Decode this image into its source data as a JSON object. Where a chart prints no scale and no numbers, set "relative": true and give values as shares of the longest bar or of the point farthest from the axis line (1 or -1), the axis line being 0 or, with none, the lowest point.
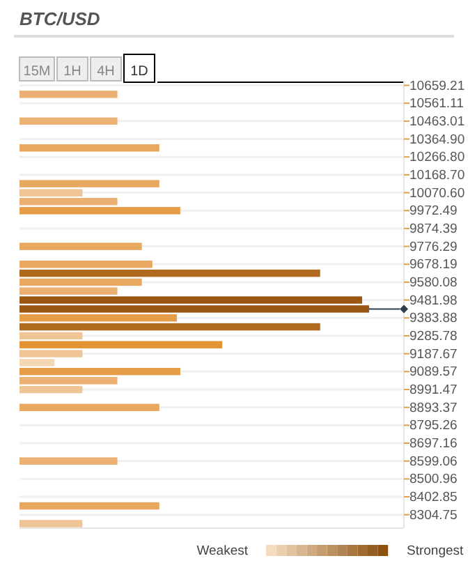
{
  "chart_data": {
    "type": "bar",
    "orientation": "horizontal",
    "relative": true,
    "title": "BTC/USD",
    "annotations": [
      "15M",
      "1H",
      "4H",
      "1D",
      "Weakest",
      "Strongest"
    ],
    "x": [
      10610,
      10463,
      10316,
      10120,
      10070,
      10022,
      9972,
      9776,
      9678,
      9629,
      9580,
      9531,
      9482,
      9433,
      9384,
      9335,
      9286,
      9237,
      9188,
      9139,
      9090,
      9040,
      8991,
      8893,
      8599,
      8353,
      8256
    ],
    "values": [
      0.28,
      0.28,
      0.4,
      0.4,
      0.18,
      0.28,
      0.46,
      0.35,
      0.38,
      0.86,
      0.35,
      0.28,
      0.98,
      1,
      0.45,
      0.86,
      0.18,
      0.58,
      0.18,
      0.1,
      0.46,
      0.28,
      0.18,
      0.4,
      0.28,
      0.4,
      0.18
    ],
    "colors": [
      "#ebb073",
      "#ebb073",
      "#e8a860",
      "#e8a860",
      "#f0c596",
      "#ebb073",
      "#e59d48",
      "#e8a860",
      "#e8a860",
      "#b06a1f",
      "#e8a860",
      "#ebb073",
      "#9a5714",
      "#9a5714",
      "#e59d48",
      "#b06a1f",
      "#f0c596",
      "#e39434",
      "#f0c596",
      "#f5d6b4",
      "#e59d48",
      "#ebb073",
      "#f0c596",
      "#e8a860",
      "#ebb073",
      "#e8a860",
      "#f0c596"
    ],
    "ylim": [
      8231,
      10684
    ],
    "yticks": [
      {
        "value": 10659.21,
        "label": "10659.21"
      },
      {
        "value": 10561.11,
        "label": "10561.11"
      },
      {
        "value": 10463.01,
        "label": "10463.01"
      },
      {
        "value": 10364.9,
        "label": "10364.90"
      },
      {
        "value": 10266.8,
        "label": "10266.80"
      },
      {
        "value": 10168.7,
        "label": "10168.70"
      },
      {
        "value": 10070.6,
        "label": "10070.60"
      },
      {
        "value": 9972.49,
        "label": "9972.49"
      },
      {
        "value": 9874.39,
        "label": "9874.39"
      },
      {
        "value": 9776.29,
        "label": "9776.29"
      },
      {
        "value": 9678.19,
        "label": "9678.19"
      },
      {
        "value": 9580.08,
        "label": "9580.08"
      },
      {
        "value": 9481.98,
        "label": "9481.98"
      },
      {
        "value": 9383.88,
        "label": "9383.88"
      },
      {
        "value": 9285.78,
        "label": "9285.78"
      },
      {
        "value": 9187.67,
        "label": "9187.67"
      },
      {
        "value": 9089.57,
        "label": "9089.57"
      },
      {
        "value": 8991.47,
        "label": "8991.47"
      },
      {
        "value": 8893.37,
        "label": "8893.37"
      },
      {
        "value": 8795.26,
        "label": "8795.26"
      },
      {
        "value": 8697.16,
        "label": "8697.16"
      },
      {
        "value": 8599.06,
        "label": "8599.06"
      },
      {
        "value": 8500.96,
        "label": "8500.96"
      },
      {
        "value": 8402.85,
        "label": "8402.85"
      },
      {
        "value": 8304.75,
        "label": "8304.75"
      }
    ],
    "ref_lines": [
      {
        "axis": "y",
        "value": 9433,
        "color": "#2c3e50"
      }
    ],
    "grid": "y"
  }
}
